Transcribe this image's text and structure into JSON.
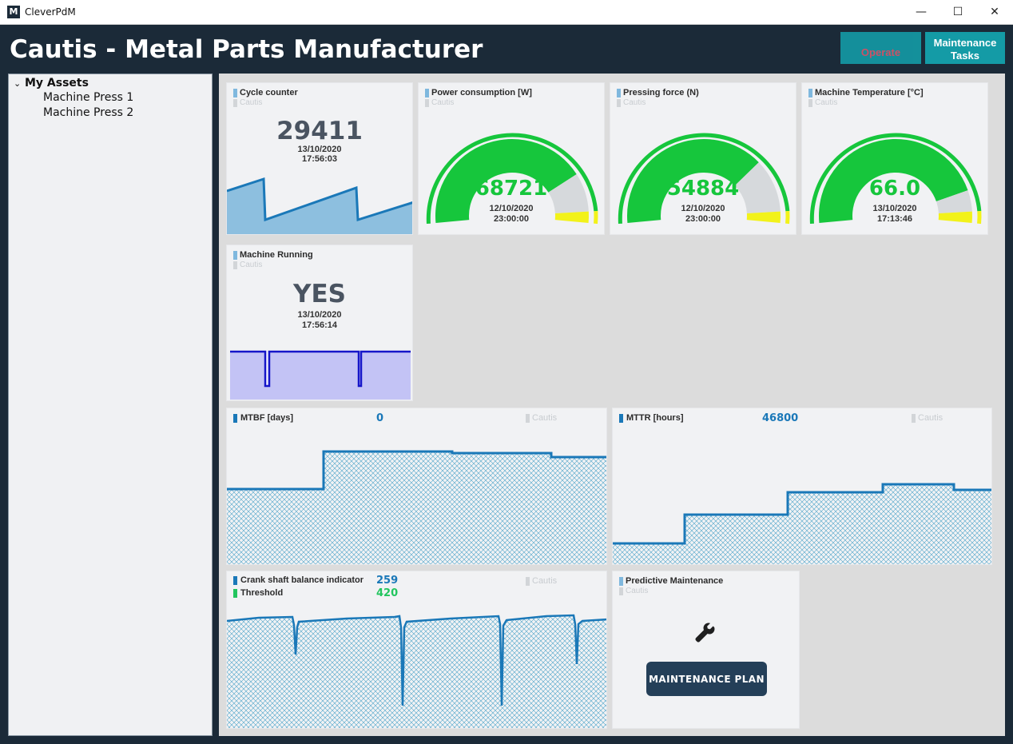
{
  "window": {
    "app_name": "CleverPdM",
    "icon_letter": "M",
    "minimize": "—",
    "maximize": "☐",
    "close": "✕"
  },
  "header": {
    "title": "Cautis - Metal Parts Manufacturer",
    "operate_label": "Operate",
    "maintenance_label_1": "Maintenance",
    "maintenance_label_2": "Tasks"
  },
  "sidebar": {
    "root_label": "My Assets",
    "chevron": "⌄",
    "items": [
      {
        "label": "Machine Press 1"
      },
      {
        "label": "Machine Press 2"
      }
    ]
  },
  "widgets": {
    "cycle_counter": {
      "title": "Cycle counter",
      "source": "Cautis",
      "value": "29411",
      "date": "13/10/2020",
      "time": "17:56:03"
    },
    "power": {
      "title": "Power consumption [W]",
      "source": "Cautis",
      "value": "68721",
      "date": "12/10/2020",
      "time": "23:00:00",
      "fill_fraction": 0.8
    },
    "pressing": {
      "title": "Pressing force (N)",
      "source": "Cautis",
      "value": "54884",
      "date": "12/10/2020",
      "time": "23:00:00",
      "fill_fraction": 0.74
    },
    "temperature": {
      "title": "Machine Temperature [°C]",
      "source": "Cautis",
      "value": "66.0",
      "date": "13/10/2020",
      "time": "17:13:46",
      "fill_fraction": 0.87
    },
    "running": {
      "title": "Machine Running",
      "source": "Cautis",
      "value": "YES",
      "date": "13/10/2020",
      "time": "17:56:14"
    },
    "mtbf": {
      "title": "MTBF [days]",
      "value": "0",
      "source": "Cautis"
    },
    "mttr": {
      "title": "MTTR [hours]",
      "value": "46800",
      "source": "Cautis"
    },
    "crank": {
      "title": "Crank shaft balance indicator",
      "value": "259",
      "threshold_label": "Threshold",
      "threshold_value": "420",
      "source": "Cautis"
    },
    "predictive": {
      "title": "Predictive Maintenance",
      "source": "Cautis",
      "button_label": "MAINTENANCE PLAN",
      "icon": "wrench-icon"
    }
  },
  "colors": {
    "accent": "#149ba6",
    "gauge_green": "#16c63c",
    "gauge_grey": "#d6d9dc",
    "gauge_yellow": "#f2f21a",
    "line_blue": "#1a78b8",
    "header_bg": "#1b2a38"
  }
}
